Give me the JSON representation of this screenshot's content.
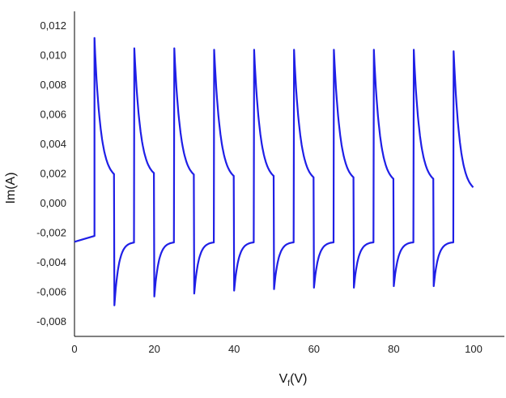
{
  "chart_data": {
    "type": "line",
    "xlabel": "V",
    "xlabel_subscript": "f",
    "xlabel_unit": "(V)",
    "ylabel": "Im(A)",
    "xlim": [
      0,
      100
    ],
    "ylim": [
      -0.009,
      0.013
    ],
    "grid": false,
    "line_color": "#1f1fe6",
    "x_ticks": [
      "0",
      "20",
      "40",
      "60",
      "80",
      "100"
    ],
    "y_ticks": [
      "0,012",
      "0,010",
      "0,008",
      "0,006",
      "0,004",
      "0,002",
      "0,000",
      "-0,002",
      "-0,004",
      "-0,006",
      "-0,008"
    ],
    "series": [
      {
        "period_V": 10,
        "initial_segment": {
          "x": [
            0,
            5
          ],
          "y": [
            -0.0026,
            -0.0022
          ]
        },
        "positive_peaks": [
          {
            "x": 5,
            "peak": 0.0112,
            "end": 0.0016
          },
          {
            "x": 15,
            "peak": 0.0105,
            "end": 0.0017
          },
          {
            "x": 25,
            "peak": 0.0105,
            "end": 0.0016
          },
          {
            "x": 35,
            "peak": 0.0104,
            "end": 0.0015
          },
          {
            "x": 45,
            "peak": 0.0104,
            "end": 0.0015
          },
          {
            "x": 55,
            "peak": 0.0104,
            "end": 0.0014
          },
          {
            "x": 65,
            "peak": 0.0104,
            "end": 0.0014
          },
          {
            "x": 75,
            "peak": 0.0104,
            "end": 0.0013
          },
          {
            "x": 85,
            "peak": 0.0104,
            "end": 0.0013
          },
          {
            "x": 95,
            "peak": 0.0103,
            "end": 0.0007
          }
        ],
        "negative_peaks": [
          {
            "x": 10,
            "peak": -0.0069,
            "end": -0.0026
          },
          {
            "x": 20,
            "peak": -0.0063,
            "end": -0.0026
          },
          {
            "x": 30,
            "peak": -0.0061,
            "end": -0.0026
          },
          {
            "x": 40,
            "peak": -0.0059,
            "end": -0.0026
          },
          {
            "x": 50,
            "peak": -0.0058,
            "end": -0.0026
          },
          {
            "x": 60,
            "peak": -0.0057,
            "end": -0.0026
          },
          {
            "x": 70,
            "peak": -0.0057,
            "end": -0.0026
          },
          {
            "x": 80,
            "peak": -0.0056,
            "end": -0.0026
          },
          {
            "x": 90,
            "peak": -0.0056,
            "end": -0.0026
          }
        ]
      }
    ]
  }
}
